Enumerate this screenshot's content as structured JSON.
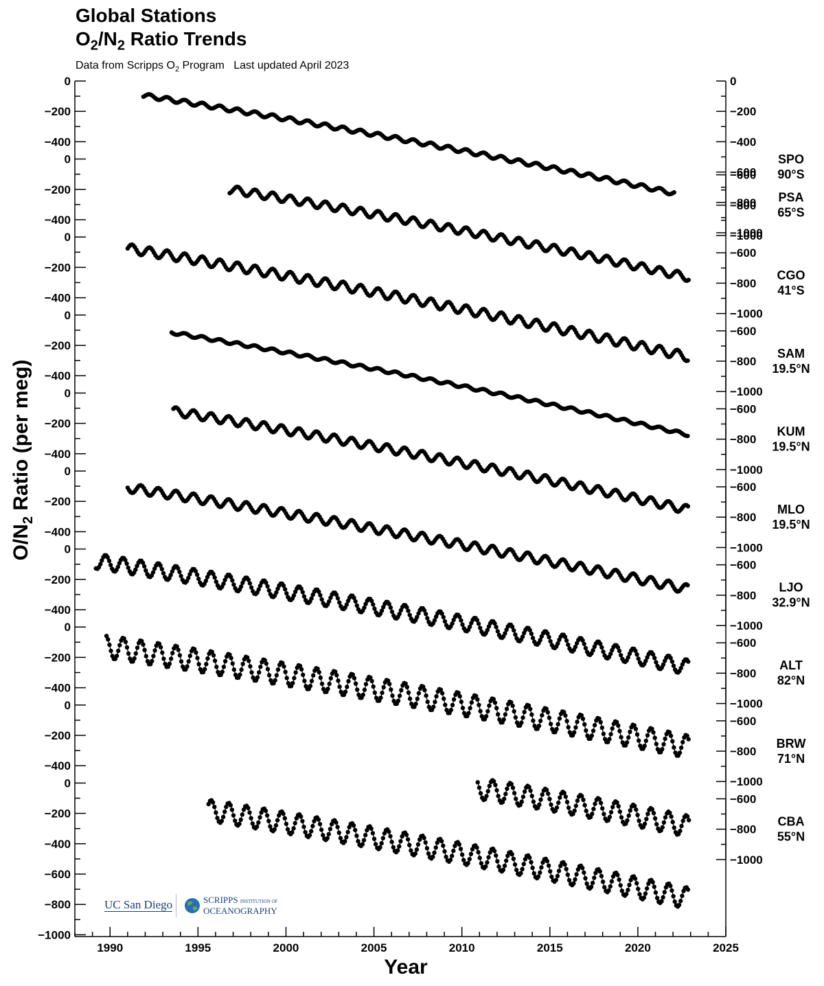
{
  "header": {
    "title_line1": "Global Stations",
    "title_line2_parts": [
      "O",
      "2",
      "/N",
      "2",
      " Ratio Trends"
    ],
    "subtitle_parts": [
      "Data from Scripps O",
      "2",
      " Program   Last updated April 2023"
    ]
  },
  "logos": {
    "ucsd": "UC San Diego",
    "scripps_line1": "SCRIPPS",
    "scripps_line1_small": "INSTITUTION OF",
    "scripps_line2": "OCEANOGRAPHY"
  },
  "chart_data": {
    "type": "line",
    "title": "O2/N2 Ratio Trends",
    "xlabel": "Year",
    "ylabel_parts": [
      "O/N",
      "2",
      " Ratio (per meg)"
    ],
    "xlim": [
      1988,
      2025
    ],
    "x_ticks": [
      1990,
      1995,
      2000,
      2005,
      2010,
      2015,
      2020,
      2025
    ],
    "left_ticks": [
      0,
      -200,
      -400
    ],
    "left_ticks_bottom": [
      0,
      -200,
      -400,
      -600,
      -800,
      -1000
    ],
    "right_ticks": [
      -600,
      -800,
      -1000
    ],
    "right_ticks_top": [
      0,
      -200,
      -400,
      -600,
      -800,
      -1000
    ],
    "series": [
      {
        "name": "SPO",
        "lat": "90°S",
        "start": 1991.9,
        "end": 2022.1,
        "v0": -95,
        "v1": -740,
        "amp": 14,
        "phase": 0.0
      },
      {
        "name": "PSA",
        "lat": "65°S",
        "start": 1996.8,
        "end": 2022.9,
        "v0": -200,
        "v1": -780,
        "amp": 26,
        "phase": 0.0
      },
      {
        "name": "CGO",
        "lat": "41°S",
        "start": 1991.0,
        "end": 2022.9,
        "v0": -75,
        "v1": -790,
        "amp": 30,
        "phase": 0.0
      },
      {
        "name": "SAM",
        "lat": "19.5°N",
        "start": 1993.5,
        "end": 2022.9,
        "v0": -115,
        "v1": -790,
        "amp": 10,
        "phase": 0.0
      },
      {
        "name": "KUM",
        "lat": "19.5°N",
        "start": 1993.6,
        "end": 2022.9,
        "v0": -120,
        "v1": -770,
        "amp": 28,
        "phase": 0.5
      },
      {
        "name": "MLO",
        "lat": "19.5°N",
        "start": 1991.0,
        "end": 2022.9,
        "v0": -110,
        "v1": -780,
        "amp": 30,
        "phase": 0.5
      },
      {
        "name": "LJO",
        "lat": "32.9°N",
        "start": 1989.2,
        "end": 2022.9,
        "v0": -80,
        "v1": -780,
        "amp": 50,
        "phase": 0.5
      },
      {
        "name": "ALT",
        "lat": "82°N",
        "start": 1989.8,
        "end": 2022.9,
        "v0": -130,
        "v1": -790,
        "amp": 75,
        "phase": 0.5
      },
      {
        "name": "BRW",
        "lat": "71°N",
        "start": 2010.9,
        "end": 2022.9,
        "v0": -550,
        "v1": -800,
        "amp": 70,
        "phase": 0.5
      },
      {
        "name": "CBA",
        "lat": "55°N",
        "start": 1995.6,
        "end": 2022.9,
        "v0": -180,
        "v1": -760,
        "amp": 70,
        "phase": 0.5
      }
    ]
  }
}
